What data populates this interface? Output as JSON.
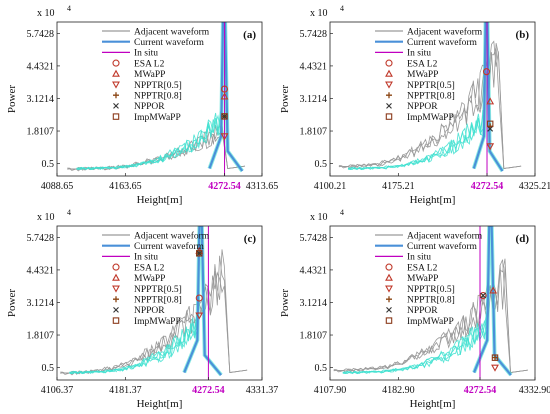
{
  "figure": {
    "shared_ylabel": "Power",
    "shared_xlabel": "Height[m]",
    "exponent_label": "x 10",
    "exponent_power": "4"
  },
  "legend_entries": [
    {
      "label": "Adjacent waveform",
      "kind": "line",
      "color": "#9a9a9a"
    },
    {
      "label": "Current waveform",
      "kind": "line",
      "color": "#4a90d9"
    },
    {
      "label": "In situ",
      "kind": "line",
      "color": "#c000c0"
    },
    {
      "label": "ESA L2",
      "kind": "circle",
      "color": "#c0392b"
    },
    {
      "label": "MWaPP",
      "kind": "triangle-up",
      "color": "#c0392b"
    },
    {
      "label": "NPPTR[0.5]",
      "kind": "triangle-down",
      "color": "#c0392b"
    },
    {
      "label": "NPPTR[0.8]",
      "kind": "plus",
      "color": "#8b4513"
    },
    {
      "label": "NPPOR",
      "kind": "cross",
      "color": "#333333"
    },
    {
      "label": "ImpMWaPP",
      "kind": "square",
      "color": "#8b3a1a"
    }
  ],
  "chart_data": [
    {
      "panel_label": "(a)",
      "type": "line",
      "xlim": [
        4088.65,
        4313.65
      ],
      "ylim": [
        0,
        6.2
      ],
      "xticks": [
        "4088.65",
        "4163.65",
        "4272.54",
        "4313.65"
      ],
      "xtick_values": [
        4088.65,
        4163.65,
        4272.54,
        4313.65
      ],
      "insitu_tick": 2,
      "yticks": [
        "0.5",
        "1.8107",
        "3.1214",
        "4.4321",
        "5.7428"
      ],
      "ytick_values": [
        0.5,
        1.8107,
        3.1214,
        4.4321,
        5.7428
      ],
      "insitu_x": 4272.54,
      "current_peak": {
        "x": 4272.0,
        "y": 6.2,
        "width": 8
      },
      "adjacent": {
        "start": 4100,
        "end": 4270,
        "base": 0.2,
        "top": 2.2
      },
      "markers": [
        {
          "name": "ESA L2",
          "x": 4272.5,
          "y": 3.5
        },
        {
          "name": "MWaPP",
          "x": 4272.5,
          "y": 3.2
        },
        {
          "name": "NPPTR[0.5]",
          "x": 4272.5,
          "y": 1.6
        },
        {
          "name": "NPPTR[0.8]",
          "x": 4272.5,
          "y": 2.4
        },
        {
          "name": "NPPOR",
          "x": 4272.5,
          "y": 2.4
        },
        {
          "name": "ImpMWaPP",
          "x": 4272.5,
          "y": 2.4
        }
      ]
    },
    {
      "panel_label": "(b)",
      "type": "line",
      "xlim": [
        4100.21,
        4325.21
      ],
      "ylim": [
        0,
        6.2
      ],
      "xticks": [
        "4100.21",
        "4175.21",
        "4272.54",
        "4325.21"
      ],
      "xtick_values": [
        4100.21,
        4175.21,
        4272.54,
        4325.21
      ],
      "insitu_tick": 2,
      "yticks": [
        "0.5",
        "1.8107",
        "3.1214",
        "4.4321",
        "5.7428"
      ],
      "ytick_values": [
        0.5,
        1.8107,
        3.1214,
        4.4321,
        5.7428
      ],
      "insitu_x": 4272.54,
      "current_peak": {
        "x": 4272.0,
        "y": 6.2,
        "width": 7
      },
      "adjacent": {
        "start": 4110,
        "end": 4285,
        "base": 0.3,
        "top": 5.8
      },
      "markers": [
        {
          "name": "ESA L2",
          "x": 4272.0,
          "y": 4.2
        },
        {
          "name": "MWaPP",
          "x": 4276.0,
          "y": 3.0
        },
        {
          "name": "NPPTR[0.5]",
          "x": 4276.0,
          "y": 1.2
        },
        {
          "name": "NPPTR[0.8]",
          "x": 4276.0,
          "y": 2.0
        },
        {
          "name": "NPPOR",
          "x": 4276.0,
          "y": 1.9
        },
        {
          "name": "ImpMWaPP",
          "x": 4276.0,
          "y": 2.1
        }
      ]
    },
    {
      "panel_label": "(c)",
      "type": "line",
      "xlim": [
        4106.37,
        4331.37
      ],
      "ylim": [
        0,
        6.2
      ],
      "xticks": [
        "4106.37",
        "4181.37",
        "4272.54",
        "4331.37"
      ],
      "xtick_values": [
        4106.37,
        4181.37,
        4272.54,
        4331.37
      ],
      "insitu_tick": 2,
      "yticks": [
        "0.5",
        "1.8107",
        "3.1214",
        "4.4321",
        "5.7428"
      ],
      "ytick_values": [
        0.5,
        1.8107,
        3.1214,
        4.4321,
        5.7428
      ],
      "insitu_x": 4272.54,
      "current_peak": {
        "x": 4264.0,
        "y": 6.2,
        "width": 9
      },
      "adjacent": {
        "start": 4110,
        "end": 4290,
        "base": 0.2,
        "top": 5.4
      },
      "markers": [
        {
          "name": "ESA L2",
          "x": 4262.5,
          "y": 3.3
        },
        {
          "name": "MWaPP",
          "x": 4262.5,
          "y": 5.2
        },
        {
          "name": "NPPTR[0.5]",
          "x": 4262.5,
          "y": 2.6
        },
        {
          "name": "NPPTR[0.8]",
          "x": 4262.5,
          "y": 5.1
        },
        {
          "name": "NPPOR",
          "x": 4262.5,
          "y": 5.1
        },
        {
          "name": "ImpMWaPP",
          "x": 4262.5,
          "y": 5.1
        }
      ]
    },
    {
      "panel_label": "(d)",
      "type": "line",
      "xlim": [
        4107.9,
        4332.9
      ],
      "ylim": [
        0,
        6.2
      ],
      "xticks": [
        "4107.90",
        "4182.90",
        "4272.54",
        "4332.90"
      ],
      "xtick_values": [
        4107.9,
        4182.9,
        4272.54,
        4332.9
      ],
      "insitu_tick": 2,
      "yticks": [
        "0.5",
        "1.8107",
        "3.1214",
        "4.4321",
        "5.7428"
      ],
      "ytick_values": [
        0.5,
        1.8107,
        3.1214,
        4.4321,
        5.7428
      ],
      "insitu_x": 4272.54,
      "current_peak": {
        "x": 4284.0,
        "y": 6.2,
        "width": 9
      },
      "adjacent": {
        "start": 4112,
        "end": 4300,
        "base": 0.3,
        "top": 5.0
      },
      "markers": [
        {
          "name": "ESA L2",
          "x": 4276.0,
          "y": 3.4
        },
        {
          "name": "MWaPP",
          "x": 4287.0,
          "y": 3.6
        },
        {
          "name": "NPPTR[0.5]",
          "x": 4289.0,
          "y": 0.5
        },
        {
          "name": "NPPTR[0.8]",
          "x": 4289.0,
          "y": 0.9
        },
        {
          "name": "NPPOR",
          "x": 4276.0,
          "y": 3.4
        },
        {
          "name": "ImpMWaPP",
          "x": 4289.0,
          "y": 0.9
        }
      ]
    }
  ]
}
